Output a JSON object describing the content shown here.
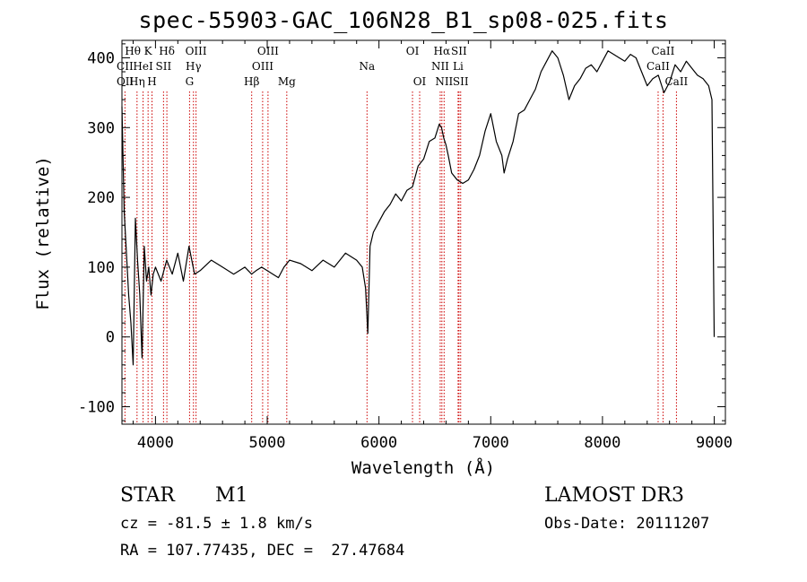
{
  "title": "spec-55903-GAC_106N28_B1_sp08-025.fits",
  "footer": {
    "obj_class": "STAR",
    "subclass": "M1",
    "survey": "LAMOST DR3",
    "cz": "cz = -81.5 ± 1.8 km/s",
    "obs_date": "Obs-Date: 20111207",
    "radec": "RA = 107.77435, DEC =  27.47684"
  },
  "chart_data": {
    "type": "line",
    "xlabel": "Wavelength (Å)",
    "ylabel": "Flux (relative)",
    "xlim": [
      3700,
      9100
    ],
    "ylim": [
      -125,
      425
    ],
    "x_ticks": [
      4000,
      5000,
      6000,
      7000,
      8000,
      9000
    ],
    "y_ticks": [
      -100,
      0,
      100,
      200,
      300,
      400
    ],
    "grid": false,
    "line_color": "#000000",
    "marker_color": "#cc0000",
    "series": [
      {
        "x": [
          3700,
          3720,
          3740,
          3760,
          3780,
          3800,
          3820,
          3840,
          3860,
          3880,
          3900,
          3920,
          3940,
          3960,
          3980,
          4000,
          4050,
          4100,
          4150,
          4200,
          4250,
          4300,
          4350,
          4400,
          4500,
          4600,
          4700,
          4800,
          4860,
          4900,
          4950,
          5000,
          5050,
          5100,
          5150,
          5200,
          5300,
          5400,
          5500,
          5600,
          5700,
          5800,
          5850,
          5880,
          5900,
          5920,
          5950,
          6000,
          6050,
          6100,
          6150,
          6200,
          6250,
          6300,
          6350,
          6400,
          6450,
          6500,
          6540,
          6560,
          6580,
          6600,
          6620,
          6650,
          6700,
          6750,
          6800,
          6850,
          6900,
          6950,
          7000,
          7050,
          7100,
          7120,
          7150,
          7200,
          7250,
          7300,
          7350,
          7400,
          7450,
          7500,
          7550,
          7600,
          7650,
          7700,
          7750,
          7800,
          7850,
          7900,
          7950,
          8000,
          8050,
          8100,
          8150,
          8200,
          8250,
          8300,
          8350,
          8400,
          8450,
          8500,
          8550,
          8600,
          8650,
          8700,
          8750,
          8800,
          8850,
          8900,
          8950,
          8980,
          9000
        ],
        "y": [
          330,
          180,
          120,
          60,
          20,
          -40,
          170,
          110,
          60,
          -30,
          130,
          80,
          100,
          60,
          90,
          100,
          80,
          110,
          90,
          120,
          80,
          130,
          90,
          95,
          110,
          100,
          90,
          100,
          90,
          95,
          100,
          95,
          90,
          85,
          100,
          110,
          105,
          95,
          110,
          100,
          120,
          110,
          100,
          70,
          5,
          130,
          150,
          165,
          180,
          190,
          205,
          195,
          210,
          215,
          245,
          255,
          280,
          285,
          305,
          300,
          285,
          275,
          260,
          235,
          225,
          220,
          225,
          240,
          260,
          295,
          320,
          280,
          260,
          235,
          255,
          280,
          320,
          325,
          340,
          355,
          380,
          395,
          410,
          400,
          375,
          340,
          360,
          370,
          385,
          390,
          380,
          395,
          410,
          405,
          400,
          395,
          405,
          400,
          380,
          360,
          370,
          375,
          350,
          365,
          390,
          380,
          395,
          385,
          375,
          370,
          360,
          340,
          0
        ]
      }
    ],
    "line_markers": [
      {
        "label": "Hθ",
        "x": 3797,
        "row": 1,
        "dash": 0
      },
      {
        "label": "K",
        "x": 3934,
        "row": 1,
        "dash": 3934
      },
      {
        "label": "Hδ",
        "x": 4102,
        "row": 1,
        "dash": 4102
      },
      {
        "label": "OIII",
        "x": 4363,
        "row": 1,
        "dash": 4363
      },
      {
        "label": "OIII",
        "x": 5007,
        "row": 1,
        "dash": 5007
      },
      {
        "label": "OI",
        "x": 6300,
        "row": 1,
        "dash": 6300
      },
      {
        "label": "Hα",
        "x": 6563,
        "row": 1,
        "dash": 6563
      },
      {
        "label": "SII",
        "x": 6716,
        "row": 1,
        "dash": 6716
      },
      {
        "label": "CaII",
        "x": 8542,
        "row": 1,
        "dash": 8542
      },
      {
        "label": "CII",
        "x": 3727,
        "row": 2,
        "dash": 3727
      },
      {
        "label": "HeI",
        "x": 3889,
        "row": 2,
        "dash": 3889
      },
      {
        "label": "SII",
        "x": 4072,
        "row": 2,
        "dash": 4072
      },
      {
        "label": "Hγ",
        "x": 4340,
        "row": 2,
        "dash": 4340
      },
      {
        "label": "OIII",
        "x": 4959,
        "row": 2,
        "dash": 4959
      },
      {
        "label": "Na",
        "x": 5893,
        "row": 2,
        "dash": 5893
      },
      {
        "label": "NII",
        "x": 6548,
        "row": 2,
        "dash": 6548
      },
      {
        "label": "Li",
        "x": 6708,
        "row": 2,
        "dash": 6708
      },
      {
        "label": "CaII",
        "x": 8498,
        "row": 2,
        "dash": 8498
      },
      {
        "label": "OII",
        "x": 3729,
        "row": 3,
        "dash": 0
      },
      {
        "label": "Hη",
        "x": 3835,
        "row": 3,
        "dash": 3835
      },
      {
        "label": "H",
        "x": 3969,
        "row": 3,
        "dash": 3969
      },
      {
        "label": "G",
        "x": 4305,
        "row": 3,
        "dash": 4305
      },
      {
        "label": "Hβ",
        "x": 4861,
        "row": 3,
        "dash": 4861
      },
      {
        "label": "Mg",
        "x": 5175,
        "row": 3,
        "dash": 5175
      },
      {
        "label": "OI",
        "x": 6364,
        "row": 3,
        "dash": 6364
      },
      {
        "label": "NII",
        "x": 6583,
        "row": 3,
        "dash": 6583
      },
      {
        "label": "SII",
        "x": 6731,
        "row": 3,
        "dash": 6731
      },
      {
        "label": "CaII",
        "x": 8662,
        "row": 3,
        "dash": 8662
      }
    ]
  }
}
